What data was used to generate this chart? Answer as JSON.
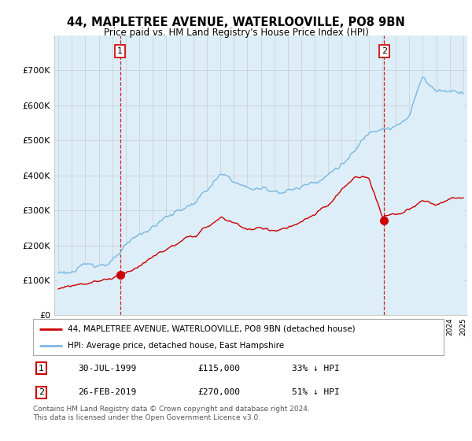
{
  "title": "44, MAPLETREE AVENUE, WATERLOOVILLE, PO8 9BN",
  "subtitle": "Price paid vs. HM Land Registry's House Price Index (HPI)",
  "legend_line1": "44, MAPLETREE AVENUE, WATERLOOVILLE, PO8 9BN (detached house)",
  "legend_line2": "HPI: Average price, detached house, East Hampshire",
  "sale1_date": "30-JUL-1999",
  "sale1_price": "£115,000",
  "sale1_hpi": "33% ↓ HPI",
  "sale1_year": 1999.58,
  "sale1_value": 115000,
  "sale2_date": "26-FEB-2019",
  "sale2_price": "£270,000",
  "sale2_hpi": "51% ↓ HPI",
  "sale2_year": 2019.15,
  "sale2_value": 270000,
  "hpi_color": "#7ab8e0",
  "hpi_fill_color": "#ddeef8",
  "price_color": "#cc0000",
  "vline_color": "#cc0000",
  "marker_color": "#cc0000",
  "footer": "Contains HM Land Registry data © Crown copyright and database right 2024.\nThis data is licensed under the Open Government Licence v3.0.",
  "ylim": [
    0,
    800000
  ],
  "yticks": [
    0,
    100000,
    200000,
    300000,
    400000,
    500000,
    600000,
    700000
  ],
  "background_color": "#ffffff"
}
